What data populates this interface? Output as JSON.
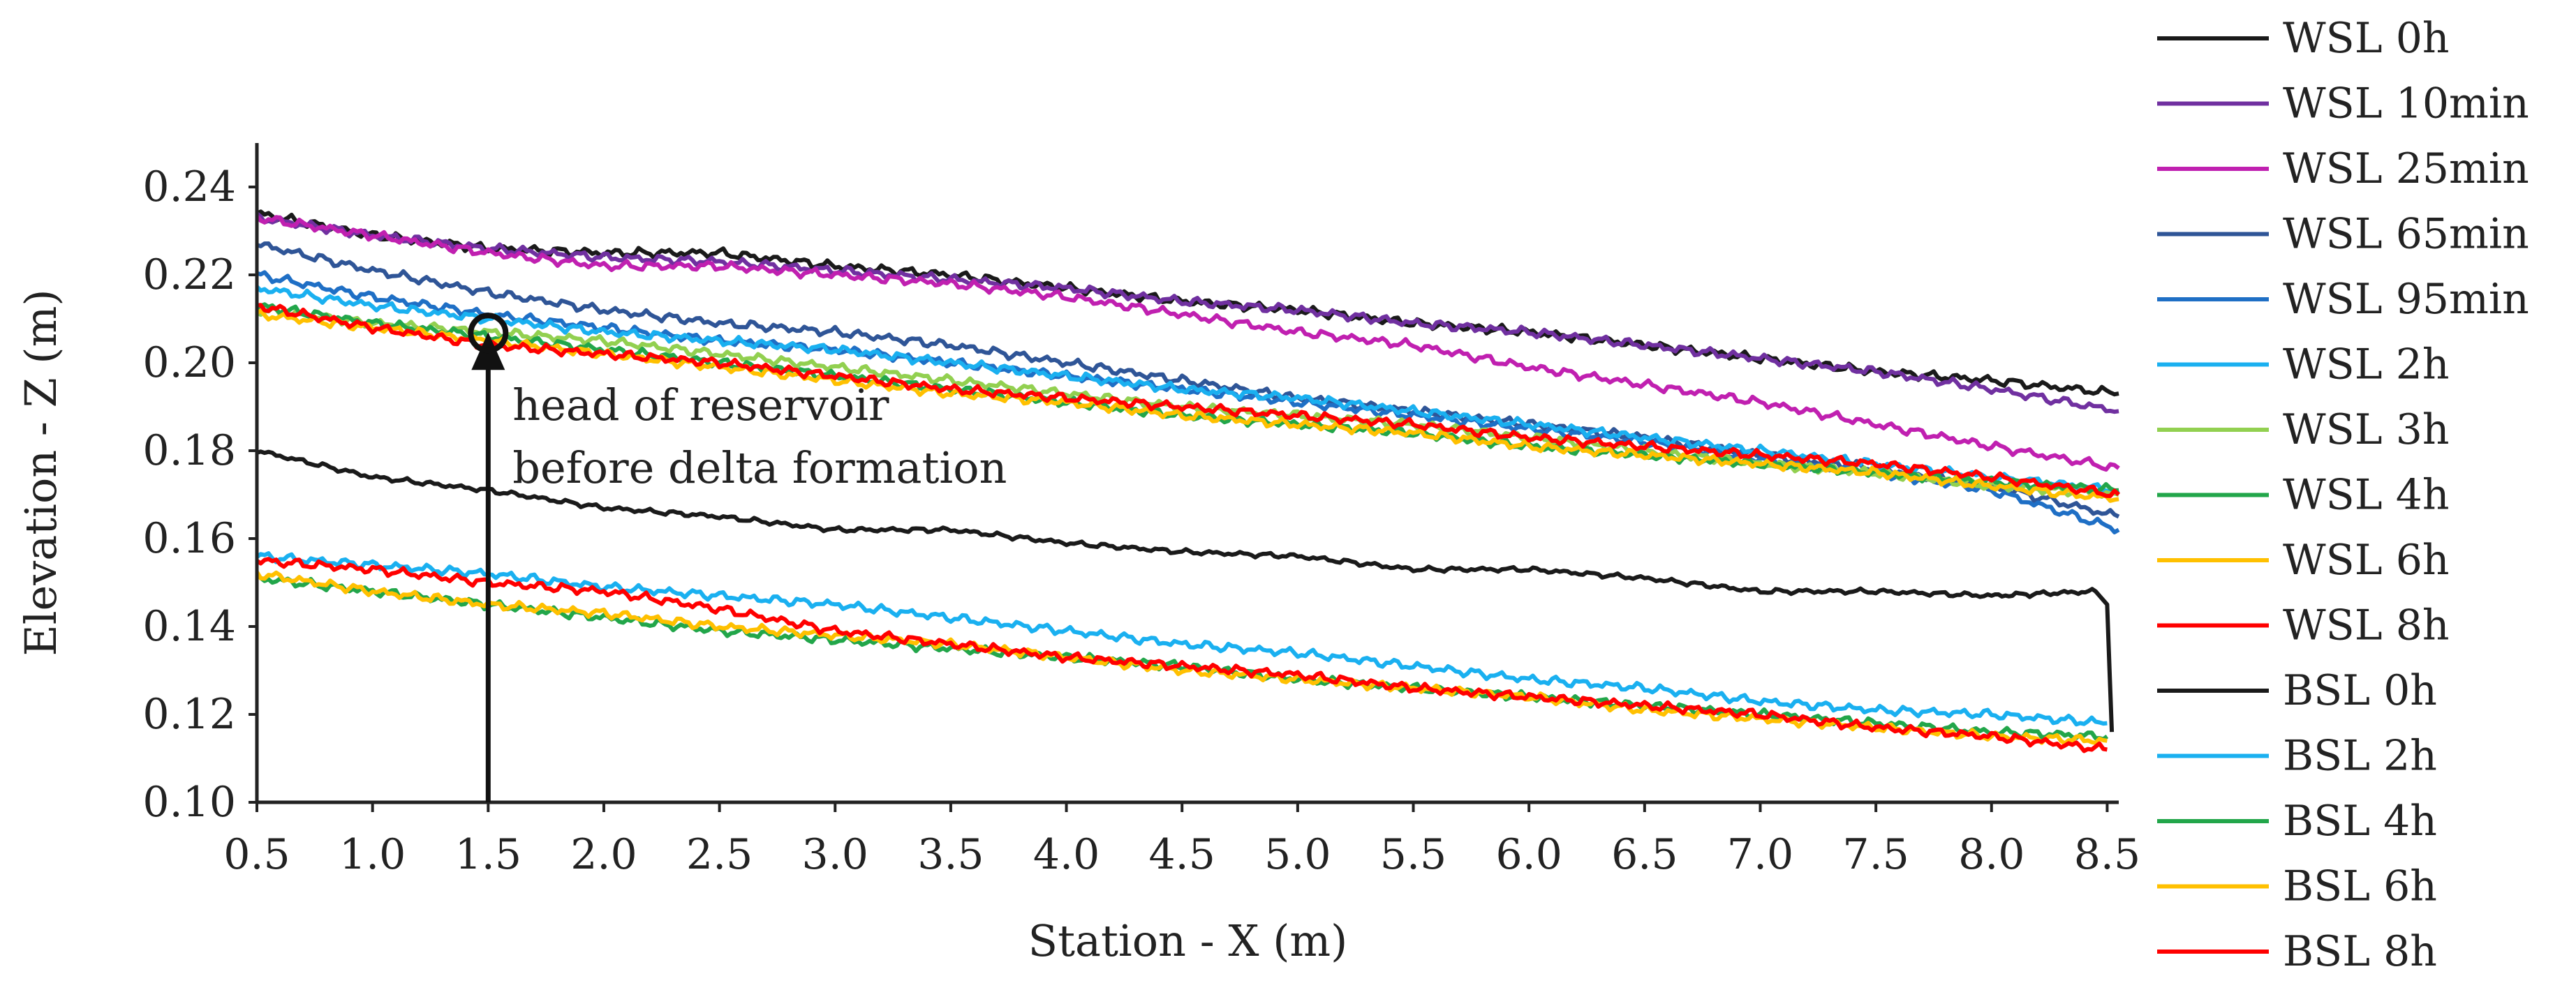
{
  "chart_data": {
    "type": "line",
    "xlabel": "Station - X (m)",
    "ylabel": "Elevation - Z (m)",
    "xlim": [
      0.5,
      8.55
    ],
    "ylim": [
      0.1,
      0.25
    ],
    "x_ticks": [
      "0.5",
      "1.0",
      "1.5",
      "2.0",
      "2.5",
      "3.0",
      "3.5",
      "4.0",
      "4.5",
      "5.0",
      "5.5",
      "6.0",
      "6.5",
      "7.0",
      "7.5",
      "8.0",
      "8.5"
    ],
    "y_ticks": [
      "0.10",
      "0.12",
      "0.14",
      "0.16",
      "0.18",
      "0.20",
      "0.22",
      "0.24"
    ],
    "grid": false,
    "legend_position": "right",
    "annotation": {
      "line1": "head of reservoir",
      "line2": "before delta formation",
      "x": 1.5,
      "y": 0.206
    },
    "series": [
      {
        "name": "WSL 0h",
        "color": "#1a1a1a",
        "x": [
          0.5,
          1.0,
          1.5,
          2.0,
          2.5,
          3.0,
          3.5,
          4.0,
          4.5,
          5.0,
          5.5,
          6.0,
          6.5,
          7.0,
          7.5,
          8.0,
          8.55
        ],
        "y": [
          0.234,
          0.229,
          0.226,
          0.225,
          0.225,
          0.222,
          0.22,
          0.217,
          0.214,
          0.212,
          0.209,
          0.207,
          0.204,
          0.201,
          0.198,
          0.196,
          0.193
        ]
      },
      {
        "name": "WSL 10min",
        "color": "#7030a0",
        "x": [
          0.5,
          1.0,
          1.5,
          2.0,
          2.5,
          3.0,
          3.5,
          4.0,
          4.5,
          5.0,
          5.5,
          6.0,
          6.5,
          7.0,
          7.5,
          8.0,
          8.55
        ],
        "y": [
          0.233,
          0.229,
          0.226,
          0.224,
          0.223,
          0.221,
          0.219,
          0.217,
          0.214,
          0.212,
          0.209,
          0.207,
          0.204,
          0.201,
          0.198,
          0.194,
          0.189
        ]
      },
      {
        "name": "WSL 25min",
        "color": "#c020b0",
        "x": [
          0.5,
          1.0,
          1.5,
          2.0,
          2.5,
          3.0,
          3.5,
          4.0,
          4.5,
          5.0,
          5.5,
          6.0,
          6.5,
          7.0,
          7.5,
          8.0,
          8.55
        ],
        "y": [
          0.233,
          0.229,
          0.225,
          0.222,
          0.222,
          0.22,
          0.218,
          0.215,
          0.211,
          0.207,
          0.204,
          0.199,
          0.195,
          0.191,
          0.186,
          0.181,
          0.176
        ]
      },
      {
        "name": "WSL 65min",
        "color": "#2f5597",
        "x": [
          0.5,
          1.0,
          1.5,
          2.0,
          2.5,
          3.0,
          3.5,
          4.0,
          4.5,
          5.0,
          5.5,
          6.0,
          6.5,
          7.0,
          7.5,
          8.0,
          8.55
        ],
        "y": [
          0.227,
          0.221,
          0.216,
          0.212,
          0.209,
          0.207,
          0.204,
          0.2,
          0.196,
          0.192,
          0.189,
          0.186,
          0.183,
          0.179,
          0.176,
          0.172,
          0.165
        ]
      },
      {
        "name": "WSL 95min",
        "color": "#1f6fc5",
        "x": [
          0.5,
          1.0,
          1.5,
          2.0,
          2.5,
          3.0,
          3.5,
          4.0,
          4.5,
          5.0,
          5.5,
          6.0,
          6.5,
          7.0,
          7.5,
          8.0,
          8.55
        ],
        "y": [
          0.22,
          0.215,
          0.211,
          0.208,
          0.205,
          0.203,
          0.2,
          0.197,
          0.194,
          0.191,
          0.188,
          0.185,
          0.182,
          0.178,
          0.175,
          0.171,
          0.162
        ]
      },
      {
        "name": "WSL 2h",
        "color": "#1ab0f0",
        "x": [
          0.5,
          1.0,
          1.5,
          2.0,
          2.5,
          3.0,
          3.5,
          4.0,
          4.5,
          5.0,
          5.5,
          6.0,
          6.5,
          7.0,
          7.5,
          8.0,
          8.55
        ],
        "y": [
          0.217,
          0.213,
          0.21,
          0.207,
          0.205,
          0.203,
          0.2,
          0.197,
          0.194,
          0.192,
          0.189,
          0.186,
          0.183,
          0.18,
          0.177,
          0.174,
          0.171
        ]
      },
      {
        "name": "WSL 3h",
        "color": "#92d050",
        "x": [
          0.5,
          1.0,
          1.5,
          2.0,
          2.5,
          3.0,
          3.5,
          4.0,
          4.5,
          5.0,
          5.5,
          6.0,
          6.5,
          7.0,
          7.5,
          8.0,
          8.55
        ],
        "y": [
          0.212,
          0.209,
          0.207,
          0.205,
          0.202,
          0.199,
          0.196,
          0.193,
          0.19,
          0.188,
          0.186,
          0.183,
          0.18,
          0.177,
          0.175,
          0.172,
          0.17
        ]
      },
      {
        "name": "WSL 4h",
        "color": "#22a64a",
        "x": [
          0.5,
          1.0,
          1.5,
          2.0,
          2.5,
          3.0,
          3.5,
          4.0,
          4.5,
          5.0,
          5.5,
          6.0,
          6.5,
          7.0,
          7.5,
          8.0,
          8.55
        ],
        "y": [
          0.213,
          0.209,
          0.206,
          0.203,
          0.2,
          0.197,
          0.194,
          0.191,
          0.188,
          0.186,
          0.184,
          0.181,
          0.179,
          0.177,
          0.175,
          0.173,
          0.171
        ]
      },
      {
        "name": "WSL 6h",
        "color": "#ffc000",
        "x": [
          0.5,
          1.0,
          1.5,
          2.0,
          2.5,
          3.0,
          3.5,
          4.0,
          4.5,
          5.0,
          5.5,
          6.0,
          6.5,
          7.0,
          7.5,
          8.0,
          8.55
        ],
        "y": [
          0.211,
          0.208,
          0.205,
          0.202,
          0.199,
          0.196,
          0.193,
          0.191,
          0.188,
          0.186,
          0.184,
          0.181,
          0.179,
          0.177,
          0.175,
          0.172,
          0.169
        ]
      },
      {
        "name": "WSL 8h",
        "color": "#ff0000",
        "x": [
          0.5,
          1.0,
          1.5,
          2.0,
          2.5,
          3.0,
          3.5,
          4.0,
          4.5,
          5.0,
          5.5,
          6.0,
          6.5,
          7.0,
          7.5,
          8.0,
          8.55
        ],
        "y": [
          0.213,
          0.208,
          0.204,
          0.202,
          0.2,
          0.197,
          0.194,
          0.192,
          0.19,
          0.188,
          0.186,
          0.183,
          0.181,
          0.179,
          0.177,
          0.174,
          0.17
        ]
      },
      {
        "name": "BSL 0h",
        "color": "#1a1a1a",
        "x": [
          0.5,
          1.0,
          1.5,
          2.0,
          2.5,
          3.0,
          3.5,
          4.0,
          4.5,
          5.0,
          5.5,
          6.0,
          6.5,
          7.0,
          7.5,
          8.0,
          8.45,
          8.5,
          8.52
        ],
        "y": [
          0.18,
          0.174,
          0.171,
          0.167,
          0.165,
          0.162,
          0.162,
          0.159,
          0.157,
          0.156,
          0.153,
          0.153,
          0.151,
          0.148,
          0.148,
          0.147,
          0.148,
          0.145,
          0.116
        ]
      },
      {
        "name": "BSL 2h",
        "color": "#1ab0f0",
        "x": [
          0.5,
          1.0,
          1.5,
          2.0,
          2.5,
          3.0,
          3.5,
          4.0,
          4.5,
          5.0,
          5.5,
          6.0,
          6.5,
          7.0,
          7.5,
          8.0,
          8.5
        ],
        "y": [
          0.156,
          0.154,
          0.152,
          0.149,
          0.147,
          0.145,
          0.142,
          0.139,
          0.136,
          0.134,
          0.131,
          0.128,
          0.126,
          0.123,
          0.121,
          0.12,
          0.118
        ]
      },
      {
        "name": "BSL 4h",
        "color": "#22a64a",
        "x": [
          0.5,
          1.0,
          1.5,
          2.0,
          2.5,
          3.0,
          3.5,
          4.0,
          4.5,
          5.0,
          5.5,
          6.0,
          6.5,
          7.0,
          7.5,
          8.0,
          8.5
        ],
        "y": [
          0.151,
          0.148,
          0.145,
          0.142,
          0.139,
          0.137,
          0.135,
          0.133,
          0.131,
          0.128,
          0.126,
          0.124,
          0.122,
          0.12,
          0.118,
          0.116,
          0.115
        ]
      },
      {
        "name": "BSL 6h",
        "color": "#ffc000",
        "x": [
          0.5,
          1.0,
          1.5,
          2.0,
          2.5,
          3.0,
          3.5,
          4.0,
          4.5,
          5.0,
          5.5,
          6.0,
          6.5,
          7.0,
          7.5,
          8.0,
          8.5
        ],
        "y": [
          0.152,
          0.148,
          0.145,
          0.143,
          0.14,
          0.138,
          0.136,
          0.133,
          0.13,
          0.128,
          0.126,
          0.124,
          0.121,
          0.119,
          0.117,
          0.115,
          0.114
        ]
      },
      {
        "name": "BSL 8h",
        "color": "#ff0000",
        "x": [
          0.5,
          1.0,
          1.5,
          2.0,
          2.5,
          3.0,
          3.5,
          4.0,
          4.5,
          5.0,
          5.5,
          6.0,
          6.5,
          7.0,
          7.5,
          8.0,
          8.5
        ],
        "y": [
          0.155,
          0.153,
          0.15,
          0.148,
          0.144,
          0.139,
          0.136,
          0.133,
          0.131,
          0.129,
          0.126,
          0.124,
          0.122,
          0.12,
          0.117,
          0.115,
          0.112
        ]
      }
    ]
  }
}
